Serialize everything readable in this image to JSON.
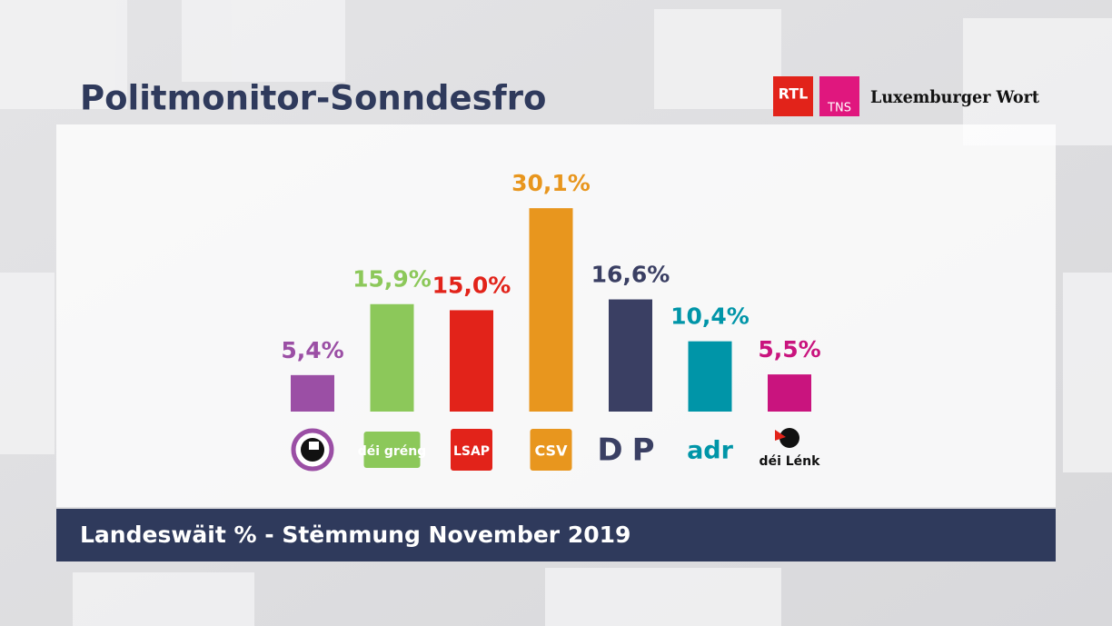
{
  "chart_data": {
    "type": "bar",
    "title": "Politmonitor-Sonndesfro",
    "subtitle": "Landeswäit % - Stëmmung November 2019",
    "logos": [
      "RTL",
      "TNS",
      "Luxemburger Wort"
    ],
    "categories": [
      null,
      "déi gréng",
      "LSAP",
      "CSV",
      "DP",
      "adr",
      "déi Lénk"
    ],
    "values": [
      5.4,
      15.9,
      15.0,
      30.1,
      16.6,
      10.4,
      5.5
    ],
    "value_labels": [
      "5,4%",
      "15,9%",
      "15,0%",
      "30,1%",
      "16,6%",
      "10,4%",
      "5,5%"
    ],
    "colors": [
      "#9b4fa5",
      "#8cc85a",
      "#e2231a",
      "#e8961e",
      "#3a3f63",
      "#0095a8",
      "#c9147e"
    ],
    "ylim": [
      0,
      32
    ]
  }
}
